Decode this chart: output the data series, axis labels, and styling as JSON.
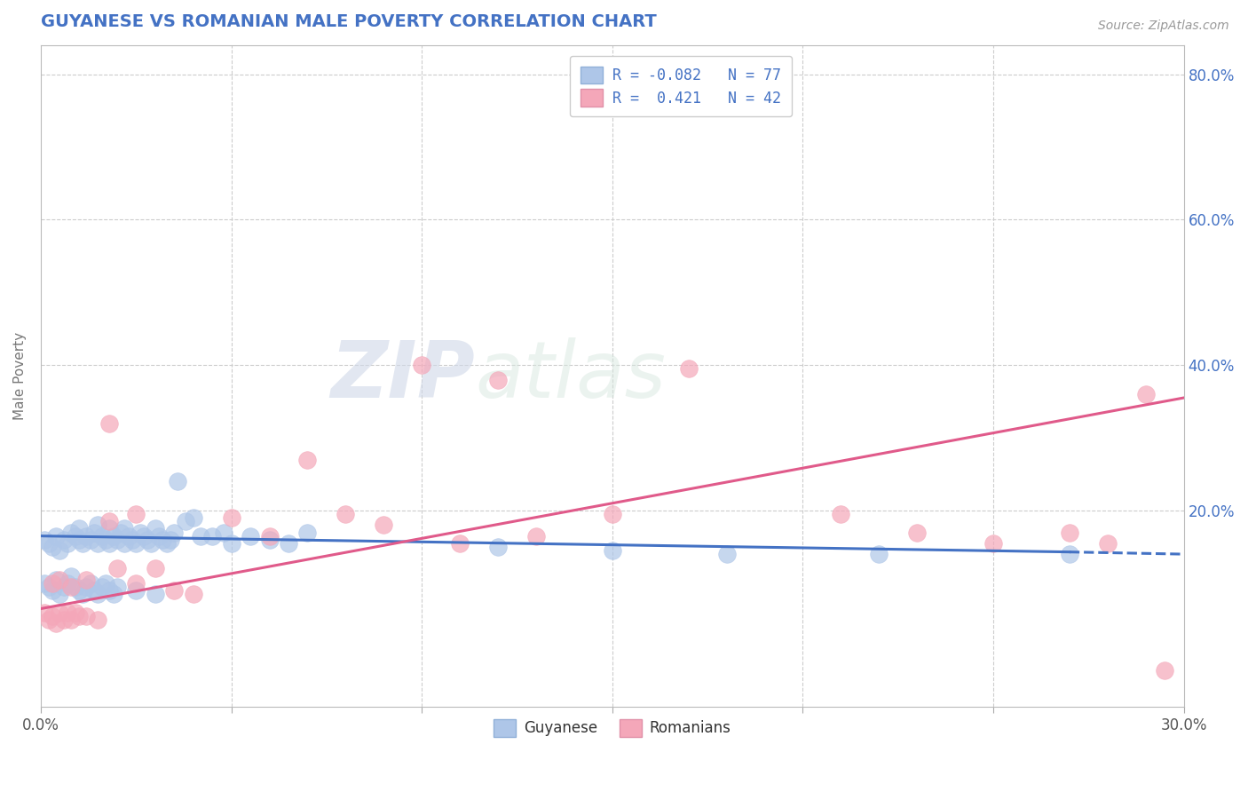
{
  "title": "GUYANESE VS ROMANIAN MALE POVERTY CORRELATION CHART",
  "source": "Source: ZipAtlas.com",
  "ylabel": "Male Poverty",
  "xlim": [
    0.0,
    0.3
  ],
  "ylim": [
    -0.07,
    0.84
  ],
  "guyanese_color": "#aec6e8",
  "romanians_color": "#f4a7b9",
  "guyanese_line_color": "#4472c4",
  "romanians_line_color": "#e05a8a",
  "title_color": "#4472c4",
  "watermark_zip": "ZIP",
  "watermark_atlas": "atlas",
  "legend_line1": "R = -0.082   N = 77",
  "legend_line2": "R =  0.421   N = 42",
  "guyanese_x": [
    0.001,
    0.002,
    0.003,
    0.004,
    0.005,
    0.006,
    0.007,
    0.008,
    0.009,
    0.01,
    0.01,
    0.011,
    0.012,
    0.013,
    0.014,
    0.015,
    0.015,
    0.016,
    0.017,
    0.018,
    0.018,
    0.019,
    0.02,
    0.021,
    0.022,
    0.022,
    0.023,
    0.024,
    0.025,
    0.026,
    0.027,
    0.028,
    0.029,
    0.03,
    0.031,
    0.032,
    0.033,
    0.034,
    0.035,
    0.036,
    0.038,
    0.04,
    0.042,
    0.045,
    0.048,
    0.05,
    0.055,
    0.06,
    0.065,
    0.07,
    0.001,
    0.002,
    0.003,
    0.004,
    0.005,
    0.006,
    0.007,
    0.008,
    0.009,
    0.01,
    0.011,
    0.012,
    0.013,
    0.014,
    0.015,
    0.016,
    0.017,
    0.018,
    0.019,
    0.02,
    0.025,
    0.03,
    0.12,
    0.15,
    0.18,
    0.22,
    0.27
  ],
  "guyanese_y": [
    0.16,
    0.155,
    0.15,
    0.165,
    0.145,
    0.16,
    0.155,
    0.17,
    0.165,
    0.16,
    0.175,
    0.155,
    0.165,
    0.16,
    0.17,
    0.155,
    0.18,
    0.165,
    0.16,
    0.155,
    0.175,
    0.165,
    0.16,
    0.17,
    0.155,
    0.175,
    0.165,
    0.16,
    0.155,
    0.17,
    0.165,
    0.16,
    0.155,
    0.175,
    0.165,
    0.16,
    0.155,
    0.16,
    0.17,
    0.24,
    0.185,
    0.19,
    0.165,
    0.165,
    0.17,
    0.155,
    0.165,
    0.16,
    0.155,
    0.17,
    0.1,
    0.095,
    0.09,
    0.105,
    0.085,
    0.095,
    0.1,
    0.11,
    0.095,
    0.09,
    0.085,
    0.095,
    0.1,
    0.09,
    0.085,
    0.095,
    0.1,
    0.09,
    0.085,
    0.095,
    0.09,
    0.085,
    0.15,
    0.145,
    0.14,
    0.14,
    0.14
  ],
  "romanians_x": [
    0.001,
    0.002,
    0.003,
    0.004,
    0.005,
    0.006,
    0.007,
    0.008,
    0.009,
    0.01,
    0.012,
    0.015,
    0.018,
    0.02,
    0.025,
    0.03,
    0.035,
    0.04,
    0.05,
    0.06,
    0.07,
    0.08,
    0.09,
    0.1,
    0.11,
    0.12,
    0.13,
    0.15,
    0.17,
    0.21,
    0.23,
    0.25,
    0.27,
    0.28,
    0.29,
    0.295,
    0.003,
    0.005,
    0.008,
    0.012,
    0.018,
    0.025
  ],
  "romanians_y": [
    0.06,
    0.05,
    0.055,
    0.045,
    0.06,
    0.05,
    0.06,
    0.05,
    0.06,
    0.055,
    0.055,
    0.05,
    0.32,
    0.12,
    0.1,
    0.12,
    0.09,
    0.085,
    0.19,
    0.165,
    0.27,
    0.195,
    0.18,
    0.4,
    0.155,
    0.38,
    0.165,
    0.195,
    0.395,
    0.195,
    0.17,
    0.155,
    0.17,
    0.155,
    0.36,
    -0.02,
    0.1,
    0.105,
    0.095,
    0.105,
    0.185,
    0.195
  ]
}
